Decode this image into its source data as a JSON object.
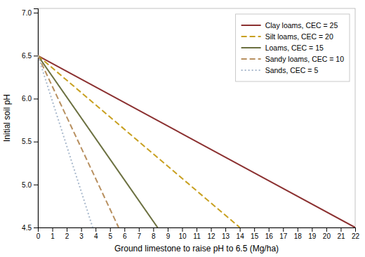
{
  "chart_data": {
    "type": "line",
    "xlabel": "Ground limestone to raise pH to 6.5 (Mg/ha)",
    "ylabel": "Initial soil pH",
    "xlim": [
      0,
      22
    ],
    "ylim": [
      4.5,
      7.05
    ],
    "xticks": [
      0,
      1,
      2,
      3,
      4,
      5,
      6,
      7,
      8,
      9,
      10,
      11,
      12,
      13,
      14,
      15,
      16,
      17,
      18,
      19,
      20,
      21,
      22
    ],
    "yticks": [
      4.5,
      {
        "value": 5.0,
        "label": "5.0"
      },
      5.5,
      {
        "value": 6.0,
        "label": "6.0"
      },
      6.5,
      {
        "value": 7.0,
        "label": "7.0"
      }
    ],
    "grid": false,
    "legend": "upper right",
    "series": [
      {
        "name": "Clay loams, CEC = 25",
        "color": "#8B3030",
        "line_style": "solid",
        "x": [
          0,
          22.0
        ],
        "values": [
          6.5,
          4.5
        ]
      },
      {
        "name": "Silt loams, CEC = 20",
        "color": "#C8A020",
        "line_style": "dashed",
        "x": [
          0,
          14.0
        ],
        "values": [
          6.5,
          4.5
        ]
      },
      {
        "name": "Loams, CEC = 15",
        "color": "#6B7040",
        "line_style": "solid",
        "x": [
          0,
          8.3
        ],
        "values": [
          6.5,
          4.5
        ]
      },
      {
        "name": "Sandy loams, CEC = 10",
        "color": "#B89060",
        "line_style": "dashed",
        "x": [
          0,
          5.6
        ],
        "values": [
          6.5,
          4.5
        ]
      },
      {
        "name": "Sands, CEC = 5",
        "color": "#A8B8CC",
        "line_style": "dotted",
        "x": [
          0,
          3.8
        ],
        "values": [
          6.5,
          4.5
        ]
      }
    ]
  }
}
